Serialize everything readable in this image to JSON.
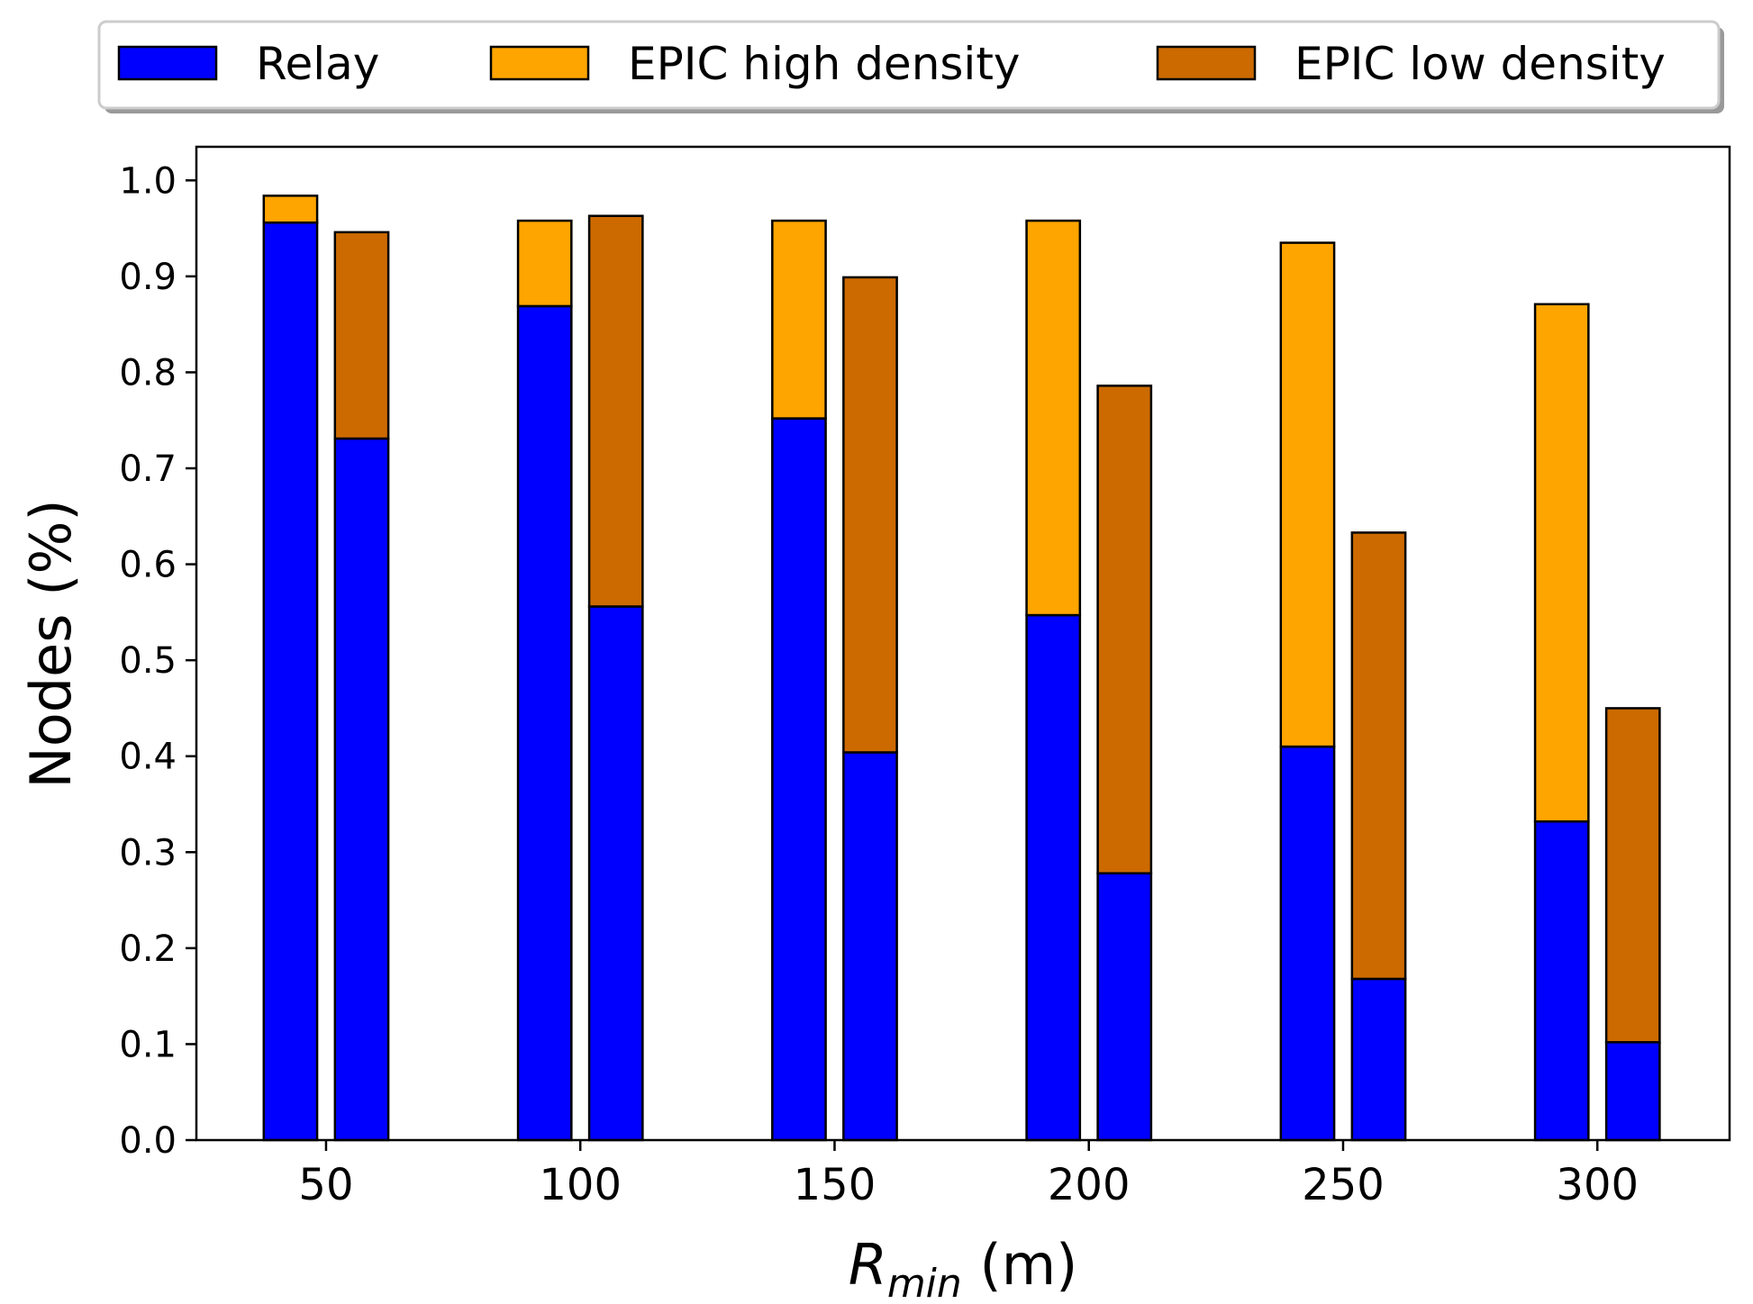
{
  "chart_data": {
    "type": "bar",
    "layout": "grouped-stacked",
    "xlabel_main": "R",
    "xlabel_sub": "min",
    "xlabel_unit": " (m)",
    "ylabel": "Nodes (%)",
    "categories": [
      "50",
      "100",
      "150",
      "200",
      "250",
      "300"
    ],
    "x": [
      50,
      100,
      150,
      200,
      250,
      300
    ],
    "xlim": [
      24.5,
      326
    ],
    "ylim": [
      0,
      1.035
    ],
    "yticks": [
      "0.0",
      "0.1",
      "0.2",
      "0.3",
      "0.4",
      "0.5",
      "0.6",
      "0.7",
      "0.8",
      "0.9",
      "1.0"
    ],
    "legend": {
      "placement": "top, outside, horizontal",
      "entries": [
        {
          "label": "Relay",
          "color": "#0000ff"
        },
        {
          "label": "EPIC high density",
          "color": "#ffa500"
        },
        {
          "label": "EPIC low density",
          "color": "#cc6a00"
        }
      ]
    },
    "groups": [
      {
        "name": "high density",
        "relay": [
          0.956,
          0.869,
          0.752,
          0.547,
          0.41,
          0.332
        ],
        "epic": [
          0.028,
          0.089,
          0.206,
          0.411,
          0.525,
          0.539
        ],
        "epic_color": "#ffa500"
      },
      {
        "name": "low density",
        "relay": [
          0.731,
          0.556,
          0.404,
          0.278,
          0.168,
          0.102
        ],
        "epic": [
          0.215,
          0.407,
          0.495,
          0.508,
          0.465,
          0.348
        ],
        "epic_color": "#cc6a00"
      }
    ],
    "colors": {
      "relay": "#0000ff",
      "epic_high": "#ffa500",
      "epic_low": "#cc6a00",
      "edge": "#000000"
    },
    "grid": false
  }
}
